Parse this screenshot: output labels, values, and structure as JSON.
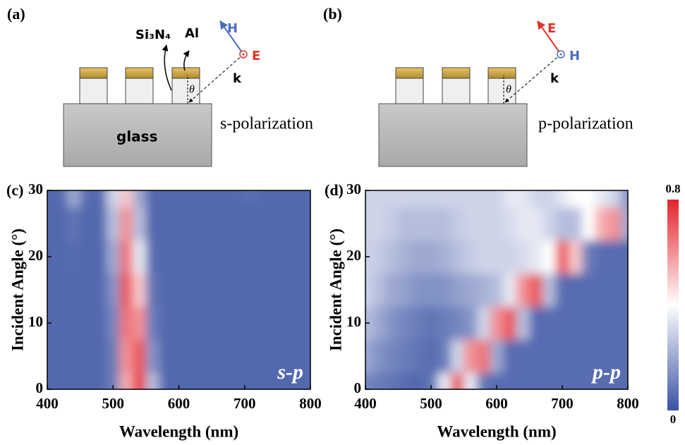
{
  "diagram": {
    "a": {
      "label": "(a)",
      "si3n4": "Si₃N₄",
      "al": "Al",
      "h": "H",
      "e": "E",
      "k": "k",
      "theta": "θ",
      "glass": "glass",
      "polarization": "s-polarization"
    },
    "b": {
      "label": "(b)",
      "e": "E",
      "h": "H",
      "k": "k",
      "theta": "θ",
      "polarization": "p-polarization"
    }
  },
  "colorbar": {
    "zlim": [
      0,
      0.8
    ],
    "zticks": [
      0,
      0.8
    ],
    "colors": [
      "#3a52a3",
      "#ffffff",
      "#e3222a"
    ]
  },
  "chart_data": [
    {
      "type": "heatmap",
      "panel": "(c)",
      "annotation": "s-p",
      "xlabel": "Wavelength (nm)",
      "ylabel": "Incident Angle (°)",
      "x": [
        400,
        420,
        440,
        460,
        480,
        500,
        520,
        540,
        560,
        580,
        600,
        620,
        640,
        660,
        680,
        700,
        720,
        740,
        760,
        780,
        800
      ],
      "y": [
        0,
        5,
        10,
        15,
        20,
        25,
        30
      ],
      "z": [
        [
          0.05,
          0.05,
          0.05,
          0.05,
          0.05,
          0.1,
          0.55,
          0.75,
          0.25,
          0.05,
          0.05,
          0.05,
          0.05,
          0.05,
          0.05,
          0.05,
          0.05,
          0.05,
          0.05,
          0.05,
          0.05
        ],
        [
          0.05,
          0.05,
          0.05,
          0.05,
          0.05,
          0.1,
          0.6,
          0.7,
          0.15,
          0.05,
          0.05,
          0.05,
          0.05,
          0.05,
          0.05,
          0.05,
          0.05,
          0.05,
          0.05,
          0.05,
          0.05
        ],
        [
          0.05,
          0.05,
          0.05,
          0.05,
          0.05,
          0.12,
          0.65,
          0.6,
          0.1,
          0.05,
          0.05,
          0.05,
          0.05,
          0.05,
          0.05,
          0.05,
          0.05,
          0.05,
          0.05,
          0.05,
          0.05
        ],
        [
          0.05,
          0.05,
          0.05,
          0.05,
          0.05,
          0.15,
          0.7,
          0.5,
          0.08,
          0.05,
          0.05,
          0.05,
          0.05,
          0.05,
          0.05,
          0.05,
          0.05,
          0.05,
          0.05,
          0.05,
          0.05
        ],
        [
          0.05,
          0.05,
          0.06,
          0.05,
          0.05,
          0.2,
          0.65,
          0.35,
          0.06,
          0.05,
          0.05,
          0.05,
          0.05,
          0.05,
          0.05,
          0.05,
          0.05,
          0.05,
          0.05,
          0.05,
          0.05
        ],
        [
          0.05,
          0.05,
          0.08,
          0.05,
          0.05,
          0.25,
          0.6,
          0.25,
          0.05,
          0.05,
          0.05,
          0.05,
          0.05,
          0.05,
          0.05,
          0.05,
          0.05,
          0.05,
          0.05,
          0.05,
          0.05
        ],
        [
          0.05,
          0.05,
          0.2,
          0.06,
          0.05,
          0.3,
          0.5,
          0.2,
          0.05,
          0.05,
          0.05,
          0.05,
          0.05,
          0.05,
          0.05,
          0.06,
          0.06,
          0.05,
          0.05,
          0.05,
          0.05
        ]
      ],
      "xlim": [
        400,
        800
      ],
      "ylim": [
        0,
        30
      ],
      "xticks": [
        400,
        500,
        600,
        700,
        800
      ],
      "yticks": [
        0,
        10,
        20,
        30
      ]
    },
    {
      "type": "heatmap",
      "panel": "(d)",
      "annotation": "p-p",
      "xlabel": "Wavelength (nm)",
      "ylabel": "Incident Angle (°)",
      "x": [
        400,
        420,
        440,
        460,
        480,
        500,
        520,
        540,
        560,
        580,
        600,
        620,
        640,
        660,
        680,
        700,
        720,
        740,
        760,
        780,
        800
      ],
      "y": [
        0,
        5,
        10,
        15,
        20,
        25,
        30
      ],
      "z": [
        [
          0.12,
          0.1,
          0.08,
          0.06,
          0.05,
          0.08,
          0.35,
          0.7,
          0.35,
          0.08,
          0.06,
          0.06,
          0.06,
          0.06,
          0.06,
          0.06,
          0.06,
          0.06,
          0.06,
          0.06,
          0.06
        ],
        [
          0.2,
          0.15,
          0.12,
          0.1,
          0.08,
          0.06,
          0.1,
          0.3,
          0.6,
          0.65,
          0.2,
          0.06,
          0.06,
          0.06,
          0.06,
          0.06,
          0.06,
          0.06,
          0.06,
          0.06,
          0.06
        ],
        [
          0.25,
          0.2,
          0.15,
          0.12,
          0.1,
          0.08,
          0.1,
          0.12,
          0.15,
          0.3,
          0.6,
          0.7,
          0.25,
          0.06,
          0.06,
          0.06,
          0.06,
          0.06,
          0.06,
          0.06,
          0.06
        ],
        [
          0.3,
          0.25,
          0.2,
          0.18,
          0.15,
          0.15,
          0.15,
          0.18,
          0.2,
          0.22,
          0.25,
          0.35,
          0.6,
          0.7,
          0.25,
          0.06,
          0.06,
          0.06,
          0.06,
          0.06,
          0.06
        ],
        [
          0.3,
          0.28,
          0.25,
          0.22,
          0.2,
          0.2,
          0.22,
          0.25,
          0.28,
          0.3,
          0.3,
          0.3,
          0.32,
          0.35,
          0.4,
          0.7,
          0.5,
          0.1,
          0.06,
          0.06,
          0.06
        ],
        [
          0.3,
          0.3,
          0.28,
          0.25,
          0.25,
          0.25,
          0.25,
          0.28,
          0.3,
          0.3,
          0.3,
          0.32,
          0.35,
          0.35,
          0.3,
          0.25,
          0.25,
          0.4,
          0.55,
          0.6,
          0.2
        ],
        [
          0.3,
          0.3,
          0.3,
          0.3,
          0.3,
          0.3,
          0.3,
          0.3,
          0.3,
          0.3,
          0.3,
          0.35,
          0.35,
          0.3,
          0.3,
          0.35,
          0.4,
          0.4,
          0.35,
          0.3,
          0.15
        ]
      ],
      "xlim": [
        400,
        800
      ],
      "ylim": [
        0,
        30
      ],
      "xticks": [
        400,
        500,
        600,
        700,
        800
      ],
      "yticks": [
        0,
        10,
        20,
        30
      ]
    }
  ]
}
